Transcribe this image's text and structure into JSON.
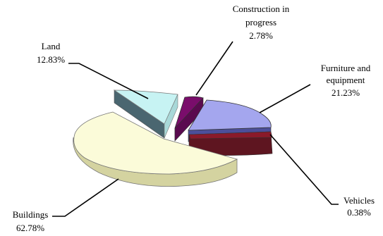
{
  "chart_data": {
    "type": "pie",
    "title": "",
    "slices": [
      {
        "label": "Land",
        "value": 12.83,
        "value_text": "12.83%",
        "color": "#c7f3f3",
        "side_color": "#4a6670"
      },
      {
        "label": "Construction in progress",
        "value": 2.78,
        "value_text": "2.78%",
        "color": "#7a0d6b",
        "side_color": "#3d0636"
      },
      {
        "label": "Furniture and equipment",
        "value": 21.23,
        "value_text": "21.23%",
        "color": "#a4a6ee",
        "side_color": "#4c4f9a"
      },
      {
        "label": "Vehicles",
        "value": 0.38,
        "value_text": "0.38%",
        "color": "#8a1a2a",
        "side_color": "#5e1520"
      },
      {
        "label": "Buildings",
        "value": 62.78,
        "value_text": "62.78%",
        "color": "#fbfbd9",
        "side_color": "#d4d3a0"
      }
    ],
    "style": "3d-exploded",
    "legend": "none"
  }
}
